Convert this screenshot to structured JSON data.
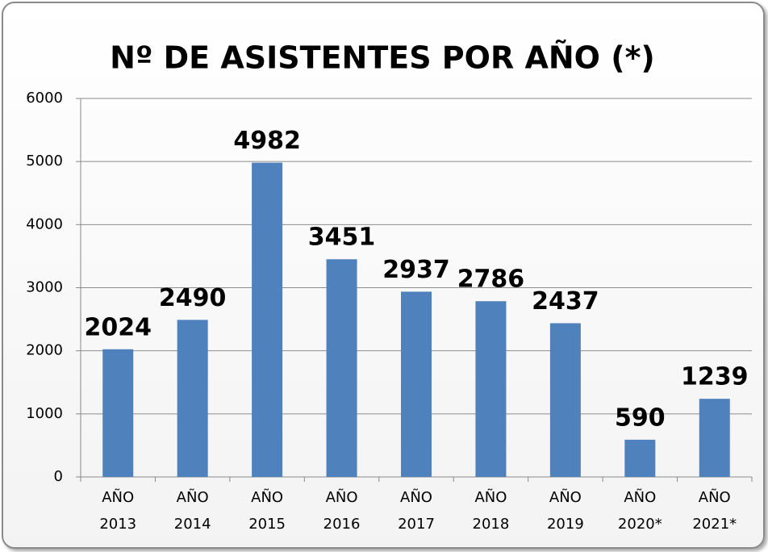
{
  "chart_data": {
    "type": "bar",
    "title": "Nº DE ASISTENTES POR AÑO (*)",
    "categories": [
      "AÑO 2013",
      "AÑO 2014",
      "AÑO 2015",
      "AÑO 2016",
      "AÑO 2017",
      "AÑO 2018",
      "AÑO 2019",
      "AÑO 2020*",
      "AÑO 2021*"
    ],
    "values": [
      2024,
      2490,
      4982,
      3451,
      2937,
      2786,
      2437,
      590,
      1239
    ],
    "color": "#4f81bd",
    "ylim": [
      0,
      6000
    ],
    "yticks": [
      0,
      1000,
      2000,
      3000,
      4000,
      5000,
      6000
    ],
    "grid": true
  }
}
